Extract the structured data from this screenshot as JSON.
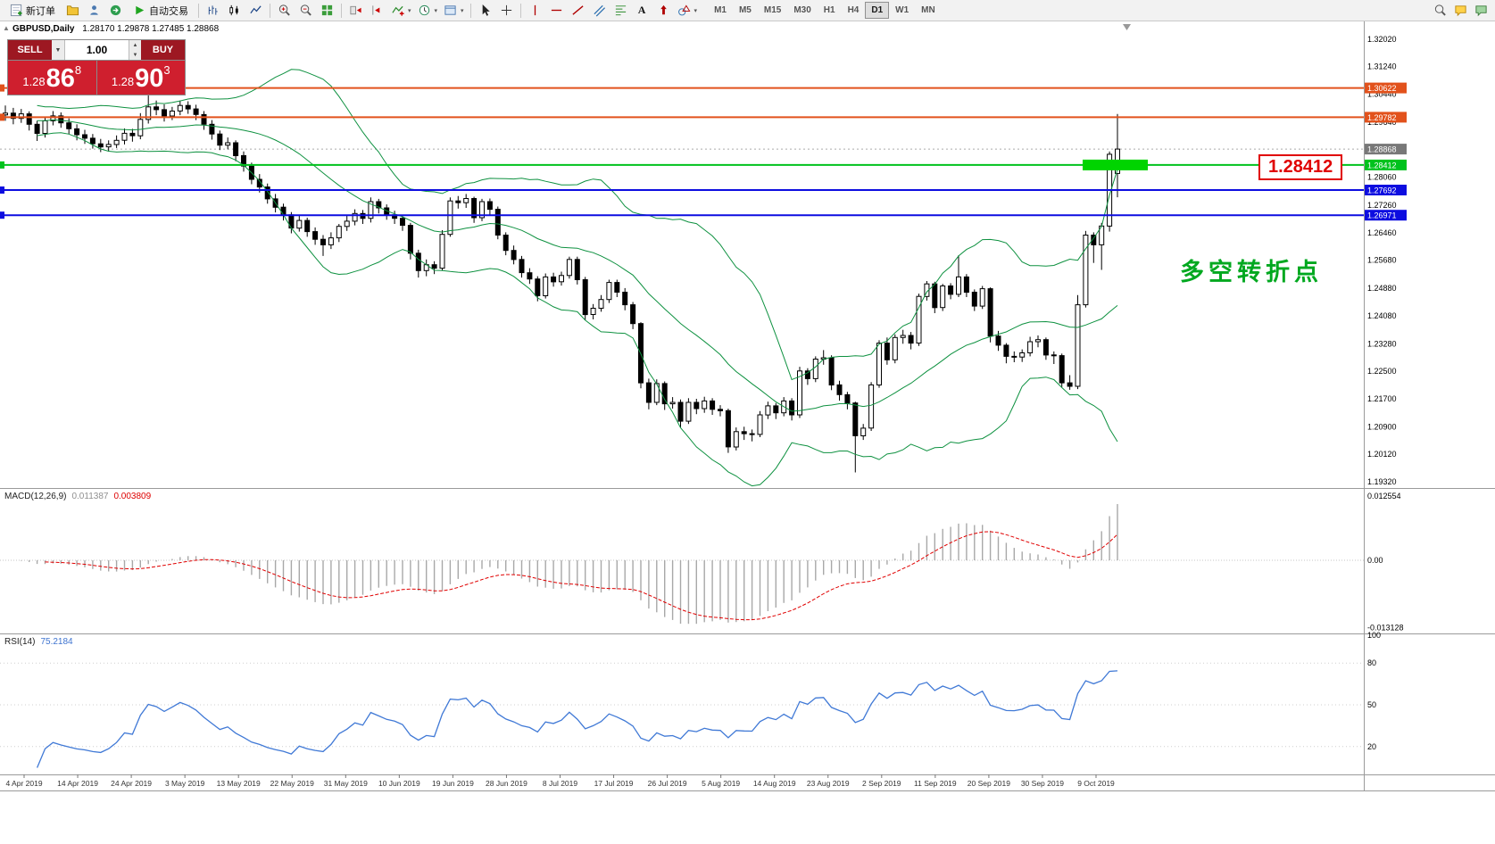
{
  "icons": {
    "menu_arrow": "▾",
    "dropdown_arrow": "▼",
    "spinner_up": "▲",
    "spinner_down": "▼",
    "panel_toggle": "▲"
  },
  "toolbar": {
    "new_order_label": "新订单",
    "autotrading_label": "自动交易",
    "text_tool_label": "A",
    "timeframes": [
      "M1",
      "M5",
      "M15",
      "M30",
      "H1",
      "H4",
      "D1",
      "W1",
      "MN"
    ],
    "active_timeframe": "D1"
  },
  "trade_panel": {
    "sell_label": "SELL",
    "buy_label": "BUY",
    "volume": "1.00",
    "sell_price": {
      "base": "1.28",
      "big": "86",
      "sup": "8"
    },
    "buy_price": {
      "base": "1.28",
      "big": "90",
      "sup": "3"
    }
  },
  "chart": {
    "symbol": "GBPUSD,Daily",
    "ohlc_text": "1.28170 1.29878 1.27485 1.28868",
    "annotation": "多空转折点",
    "price_box_label": "1.28412",
    "current_price": {
      "value": 1.28868,
      "label": "1.28868",
      "color": "#787878"
    },
    "levels": [
      {
        "value": 1.30622,
        "label": "1.30622",
        "color": "#e2521c"
      },
      {
        "value": 1.29782,
        "label": "1.29782",
        "color": "#e2521c"
      },
      {
        "value": 1.28412,
        "label": "1.28412",
        "color": "#00c21d"
      },
      {
        "value": 1.27692,
        "label": "1.27692",
        "color": "#0d0de0"
      },
      {
        "value": 1.26971,
        "label": "1.26971",
        "color": "#0d0de0"
      }
    ],
    "y_axis": [
      "1.32020",
      "1.31240",
      "1.30440",
      "1.29640",
      "1.28860",
      "1.28060",
      "1.27260",
      "1.26460",
      "1.25680",
      "1.24880",
      "1.24080",
      "1.23280",
      "1.22500",
      "1.21700",
      "1.20900",
      "1.20120",
      "1.19320"
    ],
    "x_axis_dates": [
      "4 Apr 2019",
      "14 Apr 2019",
      "24 Apr 2019",
      "3 May 2019",
      "13 May 2019",
      "22 May 2019",
      "31 May 2019",
      "10 Jun 2019",
      "19 Jun 2019",
      "28 Jun 2019",
      "8 Jul 2019",
      "17 Jul 2019",
      "26 Jul 2019",
      "5 Aug 2019",
      "14 Aug 2019",
      "23 Aug 2019",
      "2 Sep 2019",
      "11 Sep 2019",
      "20 Sep 2019",
      "30 Sep 2019",
      "9 Oct 2019"
    ],
    "colors": {
      "bands": "#0e9140",
      "macd_histogram": "#a8a8a8",
      "macd_signal": "#e00000",
      "rsi_line": "#4079d6",
      "candle_up": "#ffffff",
      "candle_down": "#000000",
      "highlight": "#00d400"
    }
  },
  "macd": {
    "name": "MACD(12,26,9)",
    "main": "0.011387",
    "signal": "0.003809",
    "axis": [
      "0.012554",
      "0.00",
      "-0.013128"
    ]
  },
  "rsi": {
    "name": "RSI(14)",
    "value": "75.2184",
    "axis": [
      "100",
      "80",
      "50",
      "20"
    ]
  },
  "chart_data": {
    "type": "candlestick",
    "symbol": "GBPUSD",
    "timeframe": "Daily",
    "indicators": [
      {
        "type": "bollinger",
        "period": 20,
        "deviation": 2
      },
      {
        "type": "macd",
        "fast": 12,
        "slow": 26,
        "signal": 9
      },
      {
        "type": "rsi",
        "period": 14
      }
    ],
    "candles": [
      [
        1.2985,
        1.3012,
        1.2968,
        1.299
      ],
      [
        1.299,
        1.3005,
        1.2958,
        1.2975
      ],
      [
        1.2975,
        1.3002,
        1.2962,
        1.2988
      ],
      [
        1.2988,
        1.2995,
        1.294,
        1.2958
      ],
      [
        1.2958,
        1.2968,
        1.291,
        1.2932
      ],
      [
        1.2932,
        1.298,
        1.292,
        1.2968
      ],
      [
        1.2968,
        1.2996,
        1.2955,
        1.2982
      ],
      [
        1.2982,
        1.2992,
        1.2948,
        1.2962
      ],
      [
        1.2962,
        1.2975,
        1.293,
        1.2945
      ],
      [
        1.2945,
        1.2958,
        1.2912,
        1.2928
      ],
      [
        1.2928,
        1.2942,
        1.2902,
        1.2918
      ],
      [
        1.2918,
        1.293,
        1.2888,
        1.2902
      ],
      [
        1.2902,
        1.2916,
        1.2878,
        1.2893
      ],
      [
        1.2893,
        1.2912,
        1.288,
        1.29
      ],
      [
        1.29,
        1.2926,
        1.289,
        1.2912
      ],
      [
        1.2912,
        1.2946,
        1.29,
        1.2932
      ],
      [
        1.2932,
        1.2945,
        1.2908,
        1.2925
      ],
      [
        1.2925,
        1.299,
        1.2915,
        1.2972
      ],
      [
        1.2972,
        1.3048,
        1.296,
        1.3008
      ],
      [
        1.3008,
        1.3026,
        1.2984,
        1.3
      ],
      [
        1.3,
        1.3015,
        1.2966,
        1.2982
      ],
      [
        1.2982,
        1.3008,
        1.297,
        1.2996
      ],
      [
        1.2996,
        1.3026,
        1.2984,
        1.3012
      ],
      [
        1.3012,
        1.3024,
        1.2988,
        1.3002
      ],
      [
        1.3002,
        1.3014,
        1.297,
        1.2986
      ],
      [
        1.2986,
        1.2996,
        1.2942,
        1.2958
      ],
      [
        1.2958,
        1.297,
        1.2914,
        1.293
      ],
      [
        1.293,
        1.294,
        1.2884,
        1.2898
      ],
      [
        1.2898,
        1.292,
        1.2886,
        1.2905
      ],
      [
        1.2905,
        1.2912,
        1.2852,
        1.2868
      ],
      [
        1.2868,
        1.288,
        1.2822,
        1.2838
      ],
      [
        1.2838,
        1.2848,
        1.2786,
        1.28
      ],
      [
        1.28,
        1.2815,
        1.2762,
        1.2778
      ],
      [
        1.2778,
        1.2788,
        1.273,
        1.2744
      ],
      [
        1.2744,
        1.2758,
        1.2705,
        1.272
      ],
      [
        1.272,
        1.273,
        1.2682,
        1.2698
      ],
      [
        1.2698,
        1.2706,
        1.2645,
        1.266
      ],
      [
        1.266,
        1.2695,
        1.265,
        1.2682
      ],
      [
        1.2682,
        1.269,
        1.2635,
        1.265
      ],
      [
        1.265,
        1.2662,
        1.2612,
        1.2628
      ],
      [
        1.2628,
        1.264,
        1.258,
        1.2612
      ],
      [
        1.2612,
        1.2648,
        1.26,
        1.2632
      ],
      [
        1.2632,
        1.2672,
        1.262,
        1.2665
      ],
      [
        1.2665,
        1.2695,
        1.2652,
        1.268
      ],
      [
        1.268,
        1.2714,
        1.2668,
        1.2702
      ],
      [
        1.2702,
        1.2712,
        1.2672,
        1.2688
      ],
      [
        1.2688,
        1.2748,
        1.2676,
        1.2736
      ],
      [
        1.2736,
        1.2744,
        1.2702,
        1.2718
      ],
      [
        1.2718,
        1.2728,
        1.2684,
        1.2698
      ],
      [
        1.2698,
        1.271,
        1.2672,
        1.2688
      ],
      [
        1.2688,
        1.2698,
        1.2652,
        1.2668
      ],
      [
        1.2668,
        1.2675,
        1.257,
        1.2588
      ],
      [
        1.2588,
        1.2598,
        1.2518,
        1.2538
      ],
      [
        1.2538,
        1.257,
        1.2522,
        1.2555
      ],
      [
        1.2555,
        1.2565,
        1.2528,
        1.2545
      ],
      [
        1.2545,
        1.2654,
        1.2538,
        1.2642
      ],
      [
        1.2642,
        1.2748,
        1.2635,
        1.2738
      ],
      [
        1.2738,
        1.2752,
        1.2716,
        1.2733
      ],
      [
        1.2733,
        1.2758,
        1.2718,
        1.2745
      ],
      [
        1.2745,
        1.275,
        1.2675,
        1.269
      ],
      [
        1.269,
        1.2744,
        1.268,
        1.2736
      ],
      [
        1.2736,
        1.2745,
        1.2698,
        1.2714
      ],
      [
        1.2714,
        1.2722,
        1.2628,
        1.264
      ],
      [
        1.264,
        1.2648,
        1.2582,
        1.2596
      ],
      [
        1.2596,
        1.261,
        1.2556,
        1.257
      ],
      [
        1.257,
        1.258,
        1.2518,
        1.2532
      ],
      [
        1.2532,
        1.2545,
        1.25,
        1.2514
      ],
      [
        1.2514,
        1.2522,
        1.245,
        1.2466
      ],
      [
        1.2466,
        1.253,
        1.2458,
        1.252
      ],
      [
        1.252,
        1.2532,
        1.2492,
        1.2506
      ],
      [
        1.2506,
        1.2535,
        1.2495,
        1.2524
      ],
      [
        1.2524,
        1.2578,
        1.2515,
        1.257
      ],
      [
        1.257,
        1.2578,
        1.2498,
        1.2512
      ],
      [
        1.2512,
        1.252,
        1.2396,
        1.2412
      ],
      [
        1.2412,
        1.2442,
        1.2398,
        1.243
      ],
      [
        1.243,
        1.2468,
        1.242,
        1.2455
      ],
      [
        1.2455,
        1.2512,
        1.2445,
        1.2504
      ],
      [
        1.2504,
        1.2512,
        1.2462,
        1.2476
      ],
      [
        1.2476,
        1.2488,
        1.2424,
        1.244
      ],
      [
        1.244,
        1.2448,
        1.237,
        1.2386
      ],
      [
        1.2386,
        1.239,
        1.22,
        1.2216
      ],
      [
        1.2216,
        1.2228,
        1.214,
        1.216
      ],
      [
        1.216,
        1.2226,
        1.2152,
        1.2214
      ],
      [
        1.2214,
        1.222,
        1.2138,
        1.2156
      ],
      [
        1.2156,
        1.2175,
        1.2142,
        1.216
      ],
      [
        1.216,
        1.2168,
        1.2088,
        1.2106
      ],
      [
        1.2106,
        1.2172,
        1.2098,
        1.216
      ],
      [
        1.216,
        1.217,
        1.2126,
        1.2142
      ],
      [
        1.2142,
        1.2176,
        1.213,
        1.2164
      ],
      [
        1.2164,
        1.2172,
        1.2124,
        1.214
      ],
      [
        1.214,
        1.2152,
        1.212,
        1.2136
      ],
      [
        1.2136,
        1.2142,
        1.2015,
        1.2032
      ],
      [
        1.2032,
        1.2088,
        1.2022,
        1.2076
      ],
      [
        1.2076,
        1.209,
        1.2052,
        1.207
      ],
      [
        1.207,
        1.2082,
        1.2048,
        1.2068
      ],
      [
        1.2068,
        1.2135,
        1.206,
        1.2124
      ],
      [
        1.2124,
        1.2162,
        1.2112,
        1.215
      ],
      [
        1.215,
        1.2158,
        1.2112,
        1.213
      ],
      [
        1.213,
        1.2175,
        1.212,
        1.2164
      ],
      [
        1.2164,
        1.2172,
        1.2108,
        1.2124
      ],
      [
        1.2124,
        1.2262,
        1.2115,
        1.225
      ],
      [
        1.225,
        1.2258,
        1.221,
        1.2228
      ],
      [
        1.2228,
        1.2292,
        1.2218,
        1.2284
      ],
      [
        1.2284,
        1.231,
        1.2268,
        1.2288
      ],
      [
        1.2288,
        1.2295,
        1.2195,
        1.221
      ],
      [
        1.221,
        1.2222,
        1.2165,
        1.2182
      ],
      [
        1.2182,
        1.219,
        1.214,
        1.2158
      ],
      [
        1.2158,
        1.2162,
        1.1959,
        1.2064
      ],
      [
        1.2064,
        1.2098,
        1.2052,
        1.2086
      ],
      [
        1.2086,
        1.2218,
        1.2078,
        1.221
      ],
      [
        1.221,
        1.2338,
        1.2202,
        1.233
      ],
      [
        1.233,
        1.2346,
        1.2268,
        1.2282
      ],
      [
        1.2282,
        1.2355,
        1.2272,
        1.2346
      ],
      [
        1.2346,
        1.2368,
        1.2328,
        1.2352
      ],
      [
        1.2352,
        1.2362,
        1.2312,
        1.233
      ],
      [
        1.233,
        1.2472,
        1.2322,
        1.2464
      ],
      [
        1.2464,
        1.2508,
        1.2452,
        1.25
      ],
      [
        1.25,
        1.2506,
        1.2416,
        1.2432
      ],
      [
        1.2432,
        1.25,
        1.2422,
        1.2494
      ],
      [
        1.2494,
        1.2502,
        1.2456,
        1.247
      ],
      [
        1.247,
        1.2582,
        1.2462,
        1.252
      ],
      [
        1.252,
        1.2528,
        1.2462,
        1.2476
      ],
      [
        1.2476,
        1.2484,
        1.2422,
        1.2436
      ],
      [
        1.2436,
        1.2494,
        1.2428,
        1.2486
      ],
      [
        1.2486,
        1.249,
        1.2332,
        1.235
      ],
      [
        1.235,
        1.2365,
        1.2308,
        1.2324
      ],
      [
        1.2324,
        1.233,
        1.2272,
        1.2292
      ],
      [
        1.2292,
        1.2306,
        1.2275,
        1.229
      ],
      [
        1.229,
        1.2312,
        1.2276,
        1.2302
      ],
      [
        1.2302,
        1.2348,
        1.2292,
        1.2334
      ],
      [
        1.2334,
        1.2352,
        1.2318,
        1.234
      ],
      [
        1.234,
        1.2346,
        1.2282,
        1.2296
      ],
      [
        1.2296,
        1.2306,
        1.227,
        1.2294
      ],
      [
        1.2294,
        1.23,
        1.2204,
        1.2216
      ],
      [
        1.2216,
        1.2238,
        1.2196,
        1.2206
      ],
      [
        1.2206,
        1.2468,
        1.2198,
        1.244
      ],
      [
        1.244,
        1.2652,
        1.2432,
        1.264
      ],
      [
        1.264,
        1.2648,
        1.256,
        1.2612
      ],
      [
        1.2612,
        1.2675,
        1.254,
        1.2666
      ],
      [
        1.2666,
        1.288,
        1.265,
        1.2872
      ],
      [
        1.2817,
        1.29878,
        1.27485,
        1.28868
      ]
    ]
  }
}
